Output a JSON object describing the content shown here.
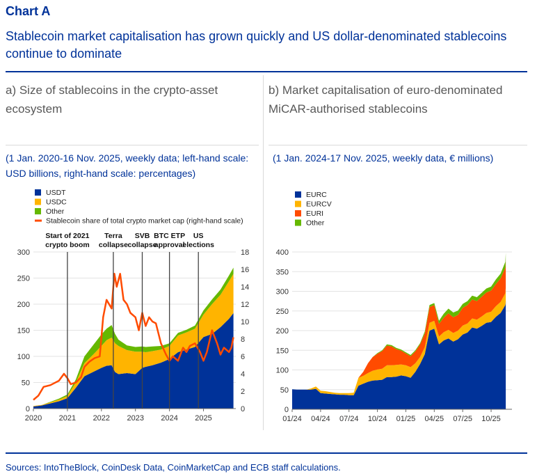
{
  "header": {
    "chart_label": "Chart A",
    "title": "Stablecoin market capitalisation has grown quickly and US dollar-denominated stablecoins continue to dominate"
  },
  "panel_a": {
    "title": "a) Size of stablecoins in the crypto-asset ecosystem",
    "subtitle": "(1 Jan. 2020-16 Nov. 2025, weekly data; left-hand scale: USD billions, right-hand scale: percentages)"
  },
  "panel_b": {
    "title": "b) Market capitalisation of euro-denominated MiCAR-authorised stablecoins",
    "subtitle": "(1 Jan. 2024-17 Nov. 2025, weekly data, € millions)"
  },
  "footer": {
    "sources": "Sources: IntoTheBlock, CoinDesk Data, CoinMarketCap and ECB staff calculations."
  },
  "chart_data": [
    {
      "type": "area",
      "stacked": true,
      "x": [
        2020.0,
        2020.25,
        2020.5,
        2020.75,
        2021.0,
        2021.25,
        2021.5,
        2021.75,
        2022.0,
        2022.15,
        2022.3,
        2022.4,
        2022.5,
        2022.75,
        2023.0,
        2023.2,
        2023.3,
        2023.5,
        2023.75,
        2024.0,
        2024.25,
        2024.5,
        2024.75,
        2025.0,
        2025.25,
        2025.5,
        2025.75,
        2025.88
      ],
      "series": [
        {
          "name": "USDT",
          "color": "#003299",
          "values": [
            4,
            6,
            10,
            14,
            20,
            40,
            62,
            70,
            78,
            82,
            83,
            70,
            66,
            68,
            66,
            78,
            80,
            83,
            88,
            95,
            108,
            113,
            118,
            137,
            143,
            156,
            172,
            183
          ]
        },
        {
          "name": "USDC",
          "color": "#ffb400",
          "values": [
            1,
            1,
            2,
            3,
            4,
            10,
            25,
            33,
            42,
            49,
            53,
            55,
            54,
            44,
            43,
            31,
            28,
            27,
            25,
            25,
            32,
            33,
            35,
            43,
            57,
            62,
            72,
            75
          ]
        },
        {
          "name": "Other",
          "color": "#65b800",
          "values": [
            0,
            0,
            1,
            2,
            3,
            6,
            13,
            18,
            22,
            22,
            24,
            18,
            12,
            9,
            9,
            10,
            10,
            9,
            7,
            5,
            5,
            5,
            6,
            8,
            9,
            10,
            11,
            12
          ]
        }
      ],
      "right_axis_series": {
        "name": "Stablecoin share of total crypto market cap (right-hand scale)",
        "color": "#ff4b00",
        "x": [
          2020.0,
          2020.15,
          2020.3,
          2020.5,
          2020.6,
          2020.75,
          2020.9,
          2021.0,
          2021.1,
          2021.25,
          2021.4,
          2021.5,
          2021.65,
          2021.8,
          2021.95,
          2022.05,
          2022.15,
          2022.3,
          2022.38,
          2022.45,
          2022.55,
          2022.65,
          2022.75,
          2022.85,
          2023.0,
          2023.1,
          2023.2,
          2023.3,
          2023.4,
          2023.5,
          2023.6,
          2023.75,
          2023.9,
          2024.0,
          2024.1,
          2024.25,
          2024.4,
          2024.5,
          2024.6,
          2024.75,
          2024.9,
          2025.0,
          2025.1,
          2025.25,
          2025.4,
          2025.5,
          2025.6,
          2025.75,
          2025.82,
          2025.88
        ],
        "values": [
          1.0,
          1.5,
          2.5,
          2.7,
          2.9,
          3.2,
          4.0,
          3.5,
          2.8,
          3.0,
          3.6,
          4.8,
          5.4,
          5.8,
          6.0,
          10.5,
          12.5,
          11.5,
          15.5,
          14.0,
          15.5,
          12.5,
          12.0,
          11.0,
          10.5,
          9.0,
          11.0,
          9.5,
          10.5,
          10.0,
          9.8,
          7.5,
          6.2,
          5.5,
          6.0,
          5.5,
          7.0,
          6.5,
          7.2,
          7.5,
          6.5,
          5.5,
          6.5,
          9.0,
          7.5,
          6.2,
          7.0,
          6.5,
          7.0,
          8.2
        ]
      },
      "ylim": [
        0,
        300
      ],
      "yticks": [
        0,
        50,
        100,
        150,
        200,
        250,
        300
      ],
      "y2lim": [
        0,
        18
      ],
      "y2ticks": [
        0,
        2,
        4,
        6,
        8,
        10,
        12,
        14,
        16,
        18
      ],
      "xlim": [
        2020.0,
        2025.95
      ],
      "xticks": [
        2020,
        2021,
        2022,
        2023,
        2024,
        2025
      ],
      "xtick_labels": [
        "2020",
        "2021",
        "2022",
        "2023",
        "2024",
        "2025"
      ],
      "events": [
        {
          "x": 2021.0,
          "label": [
            "Start of 2021",
            "crypto boom"
          ]
        },
        {
          "x": 2022.35,
          "label": [
            "Terra",
            "collapse"
          ]
        },
        {
          "x": 2023.2,
          "label": [
            "SVB",
            "collapse"
          ]
        },
        {
          "x": 2024.0,
          "label": [
            "BTC ETP",
            "approval"
          ]
        },
        {
          "x": 2024.85,
          "label": [
            "US",
            "elections"
          ]
        }
      ],
      "legend": [
        "USDT",
        "USDC",
        "Other",
        "Stablecoin share of total crypto market cap (right-hand scale)"
      ],
      "legend_position": "top-left"
    },
    {
      "type": "area",
      "stacked": true,
      "x": [
        0,
        0.5,
        1,
        1.5,
        2,
        2.5,
        3,
        3.5,
        4,
        4.5,
        5,
        5.5,
        6,
        6.5,
        7,
        7.5,
        8,
        8.5,
        9,
        9.5,
        10,
        10.5,
        11,
        11.5,
        12,
        12.5,
        13,
        13.5,
        14,
        14.5,
        15,
        15.5,
        16,
        16.5,
        17,
        17.5,
        18,
        18.5,
        19,
        19.5,
        20,
        20.5,
        21,
        21.5,
        22,
        22.5,
        22.55
      ],
      "series": [
        {
          "name": "EURC",
          "color": "#003299",
          "values": [
            51,
            50,
            50,
            50,
            50,
            52,
            41,
            40,
            39,
            38,
            37,
            37,
            36,
            36,
            60,
            65,
            70,
            73,
            74,
            75,
            82,
            82,
            83,
            86,
            84,
            80,
            95,
            115,
            140,
            200,
            205,
            165,
            175,
            180,
            172,
            178,
            190,
            195,
            208,
            205,
            212,
            220,
            222,
            235,
            245,
            265,
            275
          ]
        },
        {
          "name": "EURCV",
          "color": "#ffb400",
          "values": [
            0,
            0,
            0,
            0,
            3,
            6,
            6,
            6,
            5,
            4,
            4,
            4,
            5,
            6,
            20,
            20,
            22,
            25,
            27,
            28,
            30,
            30,
            30,
            28,
            28,
            27,
            22,
            18,
            18,
            20,
            20,
            20,
            21,
            22,
            22,
            22,
            23,
            23,
            23,
            23,
            24,
            25,
            26,
            27,
            28,
            30,
            35
          ]
        },
        {
          "name": "EURI",
          "color": "#ff4b00",
          "values": [
            0,
            0,
            0,
            0,
            0,
            0,
            0,
            0,
            0,
            0,
            0,
            0,
            0,
            0,
            0,
            10,
            25,
            35,
            40,
            45,
            50,
            48,
            40,
            35,
            30,
            28,
            30,
            32,
            35,
            40,
            40,
            32,
            37,
            42,
            40,
            40,
            45,
            47,
            48,
            47,
            50,
            52,
            54,
            56,
            60,
            65,
            70
          ]
        },
        {
          "name": "Other",
          "color": "#65b800",
          "values": [
            0,
            0,
            0,
            0,
            0,
            0,
            0,
            0,
            0,
            0,
            0,
            0,
            0,
            0,
            0,
            0,
            0,
            0,
            2,
            2,
            3,
            3,
            3,
            3,
            3,
            3,
            3,
            3,
            5,
            5,
            5,
            8,
            10,
            12,
            12,
            11,
            10,
            10,
            10,
            10,
            10,
            10,
            10,
            12,
            12,
            15,
            18
          ]
        }
      ],
      "ylim": [
        0,
        400
      ],
      "yticks": [
        0,
        50,
        100,
        150,
        200,
        250,
        300,
        350,
        400
      ],
      "xlim": [
        0,
        23.2
      ],
      "xticks": [
        0,
        3,
        6,
        9,
        12,
        15,
        18,
        21
      ],
      "xtick_labels": [
        "01/24",
        "04/24",
        "07/24",
        "10/24",
        "01/25",
        "04/25",
        "07/25",
        "10/25"
      ],
      "legend": [
        "EURC",
        "EURCV",
        "EURI",
        "Other"
      ],
      "legend_position": "top-left"
    }
  ]
}
